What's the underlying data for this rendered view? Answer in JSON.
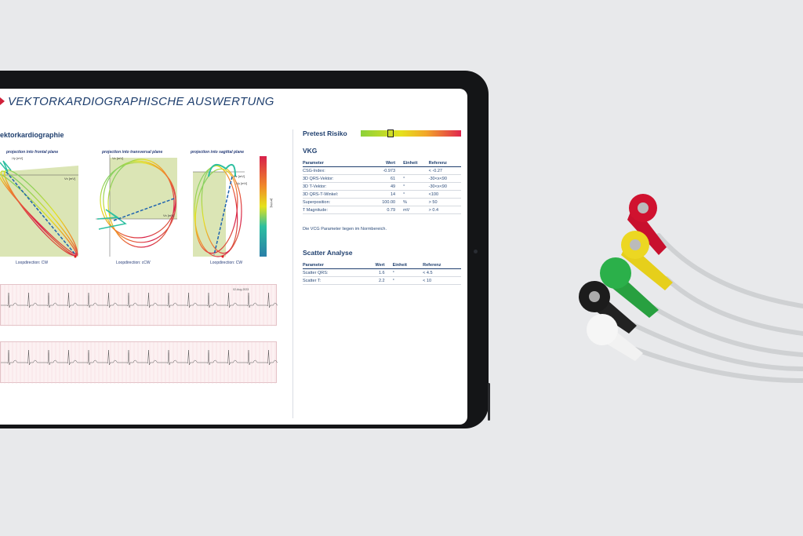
{
  "header": {
    "title": "VEKTORKARDIOGRAPHISCHE AUSWERTUNG"
  },
  "vcg_section": {
    "title": "ektorkardiographie",
    "plots": [
      {
        "title": "projection into frontal plane",
        "loopdirection": "Loopdirection: CW",
        "xaxis": "Vx [mV]",
        "yaxis": "-Vy [mV]"
      },
      {
        "title": "projection into transversal plane",
        "loopdirection": "Loopdirection: cCW",
        "xaxis": "Vx [mV]",
        "yaxis": "Vz [mV]"
      },
      {
        "title": "projection into sagittal plane",
        "loopdirection": "Loopdirection: CW",
        "xaxis": "Vz [mV]",
        "yaxis": "-Vy [mV]"
      }
    ],
    "colorbar": {
      "label": "[mV/s]",
      "min": 0,
      "max": 1,
      "colors": [
        "#2a7fa8",
        "#2dbfa0",
        "#e6e21c",
        "#f08a2a",
        "#d8204a"
      ]
    }
  },
  "ecg": {
    "date": "02-Aug-2023",
    "strips": 2
  },
  "right": {
    "pretest_label": "Pretest Risiko",
    "pretest_level": 0.3,
    "vkg": {
      "title": "VKG",
      "headers": [
        "Parameter",
        "Wert",
        "Einheit",
        "Referenz"
      ],
      "rows": [
        [
          "CSG-Index:",
          "-0.973",
          "",
          "< -0.27"
        ],
        [
          "3D QRS-Vektor:",
          "61",
          "°",
          "-30<x<90"
        ],
        [
          "3D T-Vektor:",
          "49",
          "°",
          "-30<x<90"
        ],
        [
          "3D QRS-T-Winkel:",
          "14",
          "°",
          "<100"
        ],
        [
          "Superposition:",
          "100.00",
          "%",
          "> 50"
        ],
        [
          "T Magnitude:",
          "0.79",
          "mV",
          "> 0.4"
        ]
      ],
      "note": "Die VCG Parameter liegen im Normbereich."
    },
    "scatter": {
      "title": "Scatter Analyse",
      "headers": [
        "Parameter",
        "Wert",
        "Einheit",
        "Referenz"
      ],
      "rows": [
        [
          "Scatter QRS:",
          "1.6",
          "°",
          "< 4.5"
        ],
        [
          "Scatter T:",
          "2.2",
          "°",
          "< 10"
        ]
      ]
    }
  }
}
